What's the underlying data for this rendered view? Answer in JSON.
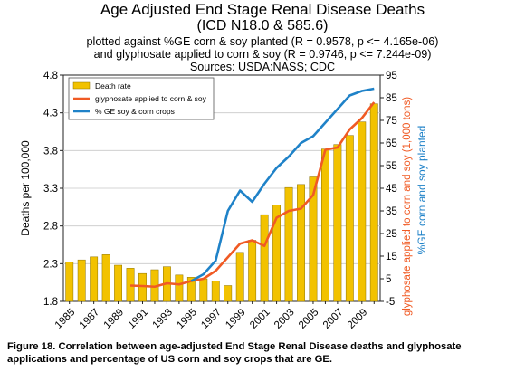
{
  "title_line1": "Age Adjusted End Stage Renal Disease Deaths",
  "title_line2": "(ICD N18.0 & 585.6)",
  "subtitle_line1": "plotted against %GE corn & soy planted (R = 0.9578, p <= 4.165e-06)",
  "subtitle_line2": "and glyphosate applied to corn & soy (R = 0.9746, p <= 7.244e-09)",
  "sources": "Sources: USDA:NASS; CDC",
  "caption": "Figure 18. Correlation between age-adjusted End Stage Renal Disease deaths and glyphosate applications and percentage of US corn and soy crops that are GE.",
  "colors": {
    "bar": "#f2c200",
    "bar_edge": "#8a7000",
    "glyphosate": "#f05a24",
    "ge": "#1f82c8",
    "grid": "#c8c8c8"
  },
  "chart_data": {
    "type": "bar+line",
    "x": [
      1985,
      1986,
      1987,
      1988,
      1989,
      1990,
      1991,
      1992,
      1993,
      1994,
      1995,
      1996,
      1997,
      1998,
      1999,
      2000,
      2001,
      2002,
      2003,
      2004,
      2005,
      2006,
      2007,
      2008,
      2009,
      2010
    ],
    "x_tick_labels": [
      "1985",
      "1987",
      "1989",
      "1991",
      "1993",
      "1995",
      "1997",
      "1999",
      "2001",
      "2003",
      "2005",
      "2007",
      "2009"
    ],
    "left_axis": {
      "label": "Deaths per 100,000",
      "ylim": [
        1.8,
        4.8
      ],
      "ticks": [
        "1.8",
        "2.3",
        "2.8",
        "3.3",
        "3.8",
        "4.3",
        "4.8"
      ]
    },
    "right_axis": {
      "ylim": [
        -5,
        95
      ],
      "ticks": [
        "-5",
        "5",
        "15",
        "25",
        "35",
        "45",
        "55",
        "65",
        "75",
        "85",
        "95"
      ]
    },
    "right_label_glyphosate": "glyphosate applied to corn and soy (1,000 tons)",
    "right_label_ge": "%GE corn and soy planted",
    "series": [
      {
        "name": "Death rate",
        "axis": "left",
        "kind": "bar",
        "values": [
          2.32,
          2.35,
          2.39,
          2.42,
          2.28,
          2.24,
          2.17,
          2.22,
          2.26,
          2.15,
          2.12,
          2.1,
          2.07,
          2.01,
          2.45,
          2.61,
          2.95,
          3.08,
          3.31,
          3.35,
          3.45,
          3.82,
          3.88,
          4.0,
          4.18,
          4.42
        ]
      },
      {
        "name": "glyphosate applied to corn & soy",
        "axis": "right",
        "kind": "line",
        "x": [
          1990,
          1991,
          1992,
          1993,
          1994,
          1995,
          1996,
          1997,
          1998,
          1999,
          2000,
          2001,
          2002,
          2003,
          2004,
          2005,
          2006,
          2007,
          2008,
          2009,
          2010
        ],
        "values": [
          2,
          1.8,
          1.5,
          3,
          2.5,
          4,
          5,
          8.5,
          14.5,
          20.5,
          22,
          19.5,
          32,
          35,
          36,
          42,
          62,
          63,
          71,
          76,
          83
        ]
      },
      {
        "name": "% GE soy & corn crops",
        "axis": "right",
        "kind": "line",
        "x": [
          1995,
          1996,
          1997,
          1998,
          1999,
          2000,
          2001,
          2002,
          2003,
          2004,
          2005,
          2006,
          2007,
          2008,
          2009,
          2010
        ],
        "values": [
          4,
          7,
          13,
          35,
          44,
          39,
          47,
          54,
          59,
          65,
          68,
          74,
          80,
          86,
          88,
          89
        ]
      }
    ],
    "legend_position": "top-left",
    "grid": true
  }
}
